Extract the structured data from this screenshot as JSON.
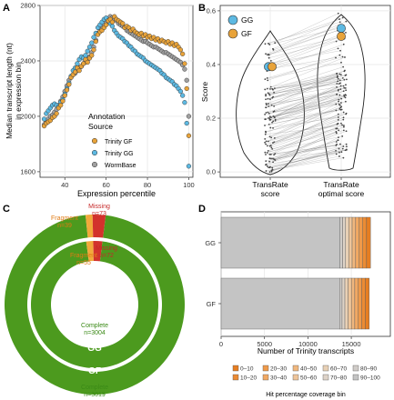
{
  "chart_data": [
    {
      "panel": "A",
      "type": "scatter",
      "xlabel": "Expression percentile",
      "ylabel": "Median transcript length (nt) in expression bin",
      "ylabel_lines": [
        "Median transcript length (nt)",
        "in expression bin"
      ],
      "xlim": [
        28,
        102
      ],
      "ylim": [
        1560,
        2800
      ],
      "xticks": [
        40,
        60,
        80,
        100
      ],
      "yticks": [
        1600,
        2000,
        2400,
        2800
      ],
      "legend_title_lines": [
        "Annotation",
        "Source"
      ],
      "legend_placement": "bottom-center",
      "grid": true,
      "series": [
        {
          "name": "Trinity GF",
          "color": "#E8A33A",
          "x": [
            30,
            31,
            32,
            33,
            34,
            35,
            36,
            37,
            38,
            39,
            40,
            41,
            42,
            43,
            44,
            45,
            46,
            47,
            48,
            49,
            50,
            51,
            52,
            53,
            54,
            55,
            56,
            57,
            58,
            59,
            60,
            61,
            62,
            63,
            64,
            65,
            66,
            67,
            68,
            69,
            70,
            71,
            72,
            73,
            74,
            75,
            76,
            77,
            78,
            79,
            80,
            81,
            82,
            83,
            84,
            85,
            86,
            87,
            88,
            89,
            90,
            91,
            92,
            93,
            94,
            95,
            96,
            97,
            98,
            99,
            100
          ],
          "y": [
            1930,
            1950,
            1960,
            1970,
            1990,
            2000,
            2020,
            2060,
            2080,
            2110,
            2150,
            2190,
            2230,
            2280,
            2300,
            2320,
            2350,
            2330,
            2360,
            2380,
            2410,
            2390,
            2420,
            2440,
            2480,
            2540,
            2590,
            2610,
            2620,
            2640,
            2660,
            2690,
            2700,
            2680,
            2720,
            2700,
            2690,
            2680,
            2670,
            2640,
            2650,
            2640,
            2620,
            2630,
            2610,
            2600,
            2590,
            2600,
            2580,
            2590,
            2570,
            2580,
            2560,
            2570,
            2550,
            2560,
            2540,
            2550,
            2540,
            2530,
            2540,
            2520,
            2530,
            2510,
            2520,
            2500,
            2480,
            2450,
            2380,
            2200,
            1860
          ]
        },
        {
          "name": "Trinity GG",
          "color": "#5DB9E2",
          "x": [
            30,
            31,
            32,
            33,
            34,
            35,
            36,
            37,
            38,
            39,
            40,
            41,
            42,
            43,
            44,
            45,
            46,
            47,
            48,
            49,
            50,
            51,
            52,
            53,
            54,
            55,
            56,
            57,
            58,
            59,
            60,
            61,
            62,
            63,
            64,
            65,
            66,
            67,
            68,
            69,
            70,
            71,
            72,
            73,
            74,
            75,
            76,
            77,
            78,
            79,
            80,
            81,
            82,
            83,
            84,
            85,
            86,
            87,
            88,
            89,
            90,
            91,
            92,
            93,
            94,
            95,
            96,
            97,
            98,
            99,
            100
          ],
          "y": [
            1980,
            2020,
            2040,
            2060,
            2080,
            2090,
            2080,
            2070,
            2100,
            2120,
            2160,
            2200,
            2240,
            2290,
            2330,
            2350,
            2380,
            2410,
            2430,
            2420,
            2440,
            2470,
            2500,
            2530,
            2570,
            2600,
            2640,
            2660,
            2680,
            2700,
            2710,
            2690,
            2670,
            2650,
            2620,
            2600,
            2580,
            2570,
            2560,
            2540,
            2530,
            2510,
            2500,
            2480,
            2470,
            2450,
            2440,
            2430,
            2420,
            2400,
            2390,
            2380,
            2370,
            2360,
            2350,
            2340,
            2330,
            2310,
            2300,
            2280,
            2270,
            2260,
            2250,
            2230,
            2220,
            2200,
            2180,
            2150,
            2100,
            1950,
            1640
          ]
        },
        {
          "name": "WormBase",
          "color": "#A0A0A0",
          "x": [
            30,
            31,
            32,
            33,
            34,
            35,
            36,
            37,
            38,
            39,
            40,
            41,
            42,
            43,
            44,
            45,
            46,
            47,
            48,
            49,
            50,
            51,
            52,
            53,
            54,
            55,
            56,
            57,
            58,
            59,
            60,
            61,
            62,
            63,
            64,
            65,
            66,
            67,
            68,
            69,
            70,
            71,
            72,
            73,
            74,
            75,
            76,
            77,
            78,
            79,
            80,
            81,
            82,
            83,
            84,
            85,
            86,
            87,
            88,
            89,
            90,
            91,
            92,
            93,
            94,
            95,
            96,
            97,
            98,
            99,
            100
          ],
          "y": [
            1940,
            1960,
            1980,
            2000,
            2010,
            2030,
            2050,
            2080,
            2110,
            2140,
            2180,
            2220,
            2260,
            2280,
            2300,
            2310,
            2330,
            2350,
            2360,
            2380,
            2390,
            2410,
            2430,
            2460,
            2500,
            2550,
            2600,
            2630,
            2650,
            2660,
            2680,
            2700,
            2720,
            2710,
            2700,
            2690,
            2670,
            2660,
            2650,
            2640,
            2620,
            2610,
            2600,
            2590,
            2580,
            2570,
            2560,
            2550,
            2540,
            2540,
            2530,
            2520,
            2510,
            2500,
            2500,
            2490,
            2480,
            2470,
            2460,
            2460,
            2450,
            2440,
            2430,
            2420,
            2410,
            2400,
            2390,
            2370,
            2340,
            2260,
            2000
          ]
        }
      ]
    },
    {
      "panel": "B",
      "type": "violin",
      "ylabel": "Score",
      "ylim": [
        -0.02,
        0.62
      ],
      "yticks": [
        0.0,
        0.2,
        0.4,
        0.6
      ],
      "ytick_labels": [
        "0.0",
        "0.2",
        "0.4",
        "0.6"
      ],
      "categories": [
        "TransRate score",
        "TransRate optimal score"
      ],
      "category_label_lines": [
        [
          "TransRate",
          "score"
        ],
        [
          "TransRate",
          "optimal score"
        ]
      ],
      "grid": true,
      "legend_placement": "top-left",
      "series": [
        {
          "name": "GG",
          "color": "#5DB9E2",
          "values": [
            0.392,
            0.535
          ]
        },
        {
          "name": "GF",
          "color": "#E8A33A",
          "values": [
            0.392,
            0.505
          ]
        }
      ]
    },
    {
      "panel": "C",
      "type": "pie",
      "subtype": "nested donut",
      "rings": [
        {
          "name": "GG",
          "slices": [
            {
              "label": "Complete",
              "value": 3004,
              "text": "n=3004",
              "color": "#4C9A1E"
            },
            {
              "label": "Fragment",
              "value": 55,
              "text": "n=55",
              "color": "#F2A93B"
            },
            {
              "label": "Missing",
              "value": 72,
              "text": "n=72",
              "color": "#D2322C"
            }
          ]
        },
        {
          "name": "GF",
          "slices": [
            {
              "label": "Complete",
              "value": 3019,
              "text": "n=3019",
              "color": "#4C9A1E"
            },
            {
              "label": "Fragment",
              "value": 39,
              "text": "n=39",
              "color": "#F2A93B"
            },
            {
              "label": "Missing",
              "value": 73,
              "text": "n=73",
              "color": "#D2322C"
            }
          ]
        }
      ]
    },
    {
      "panel": "D",
      "type": "bar",
      "subtype": "stacked horizontal",
      "xlabel": "Number of Trinity transcripts",
      "xlim": [
        0,
        19500
      ],
      "xticks": [
        0,
        5000,
        10000,
        15000
      ],
      "categories": [
        "GG",
        "GF"
      ],
      "legend_title": "Hit percentage coverage bin",
      "legend_placement": "bottom",
      "bins": [
        {
          "label": "0–10",
          "color": "#E67E22"
        },
        {
          "label": "10–20",
          "color": "#EB8B34"
        },
        {
          "label": "20–30",
          "color": "#EF9A4A"
        },
        {
          "label": "30–40",
          "color": "#F1A964"
        },
        {
          "label": "40–50",
          "color": "#F0B77E"
        },
        {
          "label": "50–60",
          "color": "#EEC59A"
        },
        {
          "label": "60–70",
          "color": "#E8D0B5"
        },
        {
          "label": "70–80",
          "color": "#DED3C8"
        },
        {
          "label": "80–90",
          "color": "#D0CCC8"
        },
        {
          "label": "90–100",
          "color": "#C4C4C4"
        }
      ],
      "series_values": {
        "GG": [
          450,
          430,
          420,
          410,
          400,
          390,
          380,
          330,
          300,
          13700
        ],
        "GF": [
          440,
          420,
          410,
          400,
          390,
          380,
          370,
          320,
          290,
          13650
        ]
      }
    }
  ],
  "labels": {
    "panel_a": "A",
    "panel_b": "B",
    "panel_c": "C",
    "panel_d": "D",
    "a_legend_title_1": "Annotation",
    "a_legend_title_2": "Source",
    "a_legend_gf": "Trinity GF",
    "a_legend_gg": "Trinity GG",
    "a_legend_wb": "WormBase",
    "b_legend_gg": "GG",
    "b_legend_gf": "GF",
    "c_fragment_outer": "Fragment",
    "c_fragment_outer_n": "n=39",
    "c_missing_outer": "Missing",
    "c_missing_outer_n": "n=73",
    "c_fragment_inner": "Fragment",
    "c_fragment_inner_n": "n=55",
    "c_missing_inner": "Missing",
    "c_missing_inner_n": "n=72",
    "c_complete_inner": "Complete",
    "c_complete_inner_n": "n=3004",
    "c_complete_outer": "Complete",
    "c_complete_outer_n": "n=3019",
    "c_ring_gg": "GG",
    "c_ring_gf": "GF"
  }
}
